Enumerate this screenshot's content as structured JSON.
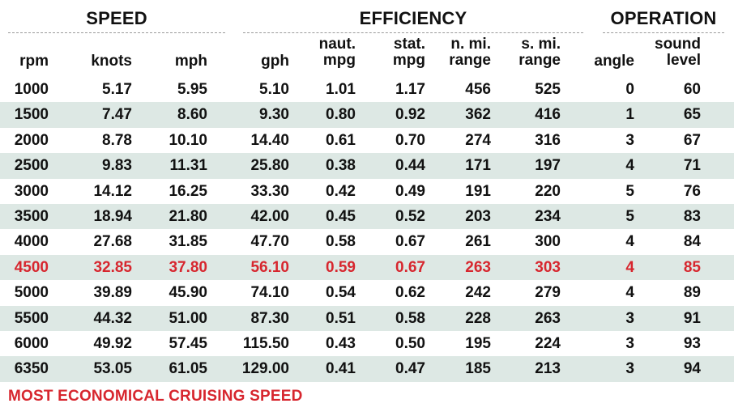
{
  "sections": {
    "speed": "SPEED",
    "efficiency": "EFFICIENCY",
    "operation": "OPERATION"
  },
  "columns": [
    "rpm",
    "knots",
    "mph",
    "gph",
    "naut.\nmpg",
    "stat.\nmpg",
    "n. mi.\nrange",
    "s. mi.\nrange",
    "angle",
    "sound\nlevel"
  ],
  "rows": [
    [
      "1000",
      "5.17",
      "5.95",
      "5.10",
      "1.01",
      "1.17",
      "456",
      "525",
      "0",
      "60"
    ],
    [
      "1500",
      "7.47",
      "8.60",
      "9.30",
      "0.80",
      "0.92",
      "362",
      "416",
      "1",
      "65"
    ],
    [
      "2000",
      "8.78",
      "10.10",
      "14.40",
      "0.61",
      "0.70",
      "274",
      "316",
      "3",
      "67"
    ],
    [
      "2500",
      "9.83",
      "11.31",
      "25.80",
      "0.38",
      "0.44",
      "171",
      "197",
      "4",
      "71"
    ],
    [
      "3000",
      "14.12",
      "16.25",
      "33.30",
      "0.42",
      "0.49",
      "191",
      "220",
      "5",
      "76"
    ],
    [
      "3500",
      "18.94",
      "21.80",
      "42.00",
      "0.45",
      "0.52",
      "203",
      "234",
      "5",
      "83"
    ],
    [
      "4000",
      "27.68",
      "31.85",
      "47.70",
      "0.58",
      "0.67",
      "261",
      "300",
      "4",
      "84"
    ],
    [
      "4500",
      "32.85",
      "37.80",
      "56.10",
      "0.59",
      "0.67",
      "263",
      "303",
      "4",
      "85"
    ],
    [
      "5000",
      "39.89",
      "45.90",
      "74.10",
      "0.54",
      "0.62",
      "242",
      "279",
      "4",
      "89"
    ],
    [
      "5500",
      "44.32",
      "51.00",
      "87.30",
      "0.51",
      "0.58",
      "228",
      "263",
      "3",
      "91"
    ],
    [
      "6000",
      "49.92",
      "57.45",
      "115.50",
      "0.43",
      "0.50",
      "195",
      "224",
      "3",
      "93"
    ],
    [
      "6350",
      "53.05",
      "61.05",
      "129.00",
      "0.41",
      "0.47",
      "185",
      "213",
      "3",
      "94"
    ]
  ],
  "highlight_row_index": 7,
  "footnote": "MOST ECONOMICAL CRUISING SPEED",
  "colors": {
    "highlight": "#d7262e",
    "row_shade": "#dde8e4",
    "text": "#111111"
  }
}
